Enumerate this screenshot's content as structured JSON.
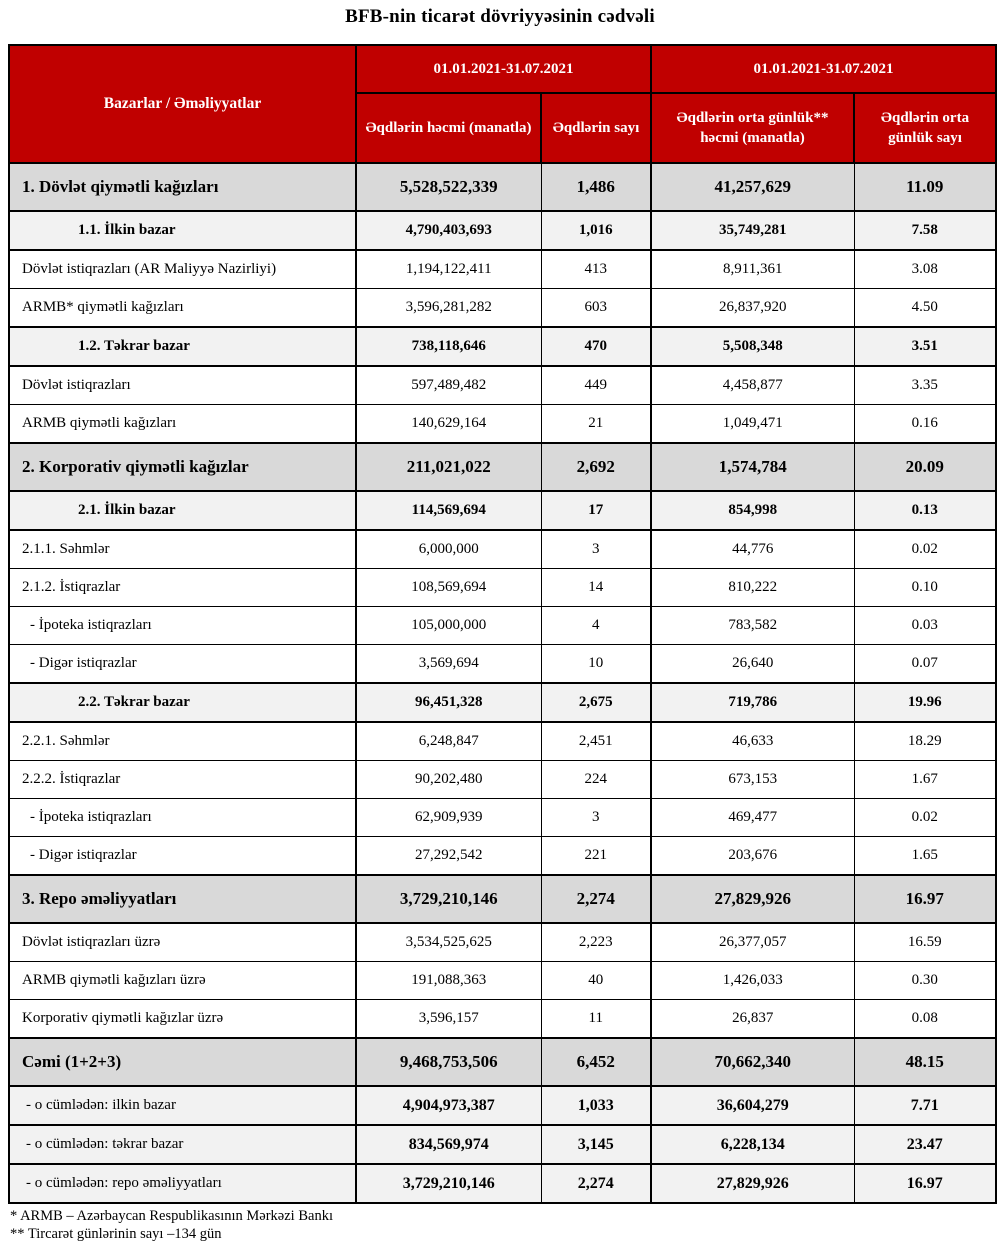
{
  "title": "BFB-nin ticarət dövriyyəsinin cədvəli",
  "colors": {
    "header_bg": "#C00000",
    "header_text": "#FFFFFF",
    "section_row_bg": "#D9D9D9",
    "subsection_row_bg": "#F2F2F2",
    "border": "#000000"
  },
  "table": {
    "corner_header": "Bazarlar / Əməliyyatlar",
    "period_headers": [
      "01.01.2021-31.07.2021",
      "01.01.2021-31.07.2021"
    ],
    "column_headers": [
      "Əqdlərin həcmi (manatla)",
      "Əqdlərin sayı",
      "Əqdlərin orta günlük** həcmi (manatla)",
      "Əqdlərin orta günlük sayı"
    ],
    "rows": [
      {
        "type": "section",
        "label": "1. Dövlət qiymətli kağızları",
        "values": [
          "5,528,522,339",
          "1,486",
          "41,257,629",
          "11.09"
        ]
      },
      {
        "type": "subsection",
        "label": "1.1. İlkin bazar",
        "values": [
          "4,790,403,693",
          "1,016",
          "35,749,281",
          "7.58"
        ]
      },
      {
        "type": "detail",
        "label": "Dövlət istiqrazları (AR Maliyyə Nazirliyi)",
        "values": [
          "1,194,122,411",
          "413",
          "8,911,361",
          "3.08"
        ]
      },
      {
        "type": "detail",
        "label": "ARMB* qiymətli kağızları",
        "values": [
          "3,596,281,282",
          "603",
          "26,837,920",
          "4.50"
        ]
      },
      {
        "type": "subsection",
        "label": "1.2. Təkrar bazar",
        "values": [
          "738,118,646",
          "470",
          "5,508,348",
          "3.51"
        ]
      },
      {
        "type": "detail",
        "label": "Dövlət istiqrazları",
        "values": [
          "597,489,482",
          "449",
          "4,458,877",
          "3.35"
        ]
      },
      {
        "type": "detail",
        "label": "ARMB qiymətli kağızları",
        "values": [
          "140,629,164",
          "21",
          "1,049,471",
          "0.16"
        ]
      },
      {
        "type": "section",
        "label": "2. Korporativ qiymətli kağızlar",
        "values": [
          "211,021,022",
          "2,692",
          "1,574,784",
          "20.09"
        ]
      },
      {
        "type": "subsection",
        "label": "2.1. İlkin bazar",
        "values": [
          "114,569,694",
          "17",
          "854,998",
          "0.13"
        ]
      },
      {
        "type": "detail",
        "label": "2.1.1. Səhmlər",
        "values": [
          "6,000,000",
          "3",
          "44,776",
          "0.02"
        ]
      },
      {
        "type": "detail",
        "label": "2.1.2. İstiqrazlar",
        "values": [
          "108,569,694",
          "14",
          "810,222",
          "0.10"
        ]
      },
      {
        "type": "dash",
        "label": "-  İpoteka istiqrazları",
        "values": [
          "105,000,000",
          "4",
          "783,582",
          "0.03"
        ]
      },
      {
        "type": "dash",
        "label": "-  Digər istiqrazlar",
        "values": [
          "3,569,694",
          "10",
          "26,640",
          "0.07"
        ]
      },
      {
        "type": "subsection",
        "label": "2.2. Təkrar bazar",
        "values": [
          "96,451,328",
          "2,675",
          "719,786",
          "19.96"
        ]
      },
      {
        "type": "detail",
        "label": "2.2.1. Səhmlər",
        "values": [
          "6,248,847",
          "2,451",
          "46,633",
          "18.29"
        ]
      },
      {
        "type": "detail",
        "label": "2.2.2. İstiqrazlar",
        "values": [
          "90,202,480",
          "224",
          "673,153",
          "1.67"
        ]
      },
      {
        "type": "dash",
        "label": "-  İpoteka istiqrazları",
        "values": [
          "62,909,939",
          "3",
          "469,477",
          "0.02"
        ]
      },
      {
        "type": "dash",
        "label": "-  Digər istiqrazlar",
        "values": [
          "27,292,542",
          "221",
          "203,676",
          "1.65"
        ]
      },
      {
        "type": "section",
        "label": "3. Repo əməliyyatları",
        "values": [
          "3,729,210,146",
          "2,274",
          "27,829,926",
          "16.97"
        ]
      },
      {
        "type": "detail",
        "label": "Dövlət istiqrazları üzrə",
        "values": [
          "3,534,525,625",
          "2,223",
          "26,377,057",
          "16.59"
        ]
      },
      {
        "type": "detail",
        "label": "ARMB qiymətli kağızları üzrə",
        "values": [
          "191,088,363",
          "40",
          "1,426,033",
          "0.30"
        ]
      },
      {
        "type": "detail",
        "label": "Korporativ qiymətli kağızlar üzrə",
        "values": [
          "3,596,157",
          "11",
          "26,837",
          "0.08"
        ]
      },
      {
        "type": "total",
        "label": "Cəmi (1+2+3)",
        "values": [
          "9,468,753,506",
          "6,452",
          "70,662,340",
          "48.15"
        ]
      },
      {
        "type": "summary",
        "label": "-  o cümlədən: ilkin bazar",
        "values": [
          "4,904,973,387",
          "1,033",
          "36,604,279",
          "7.71"
        ]
      },
      {
        "type": "summary",
        "label": "-  o cümlədən: təkrar bazar",
        "values": [
          "834,569,974",
          "3,145",
          "6,228,134",
          "23.47"
        ]
      },
      {
        "type": "summary",
        "label": "-  o cümlədən: repo əməliyyatları",
        "values": [
          "3,729,210,146",
          "2,274",
          "27,829,926",
          "16.97"
        ]
      }
    ]
  },
  "footnotes": [
    "* ARMB – Azərbaycan Respublikasının Mərkəzi Bankı",
    "** Tircarət günlərinin sayı –134 gün"
  ]
}
